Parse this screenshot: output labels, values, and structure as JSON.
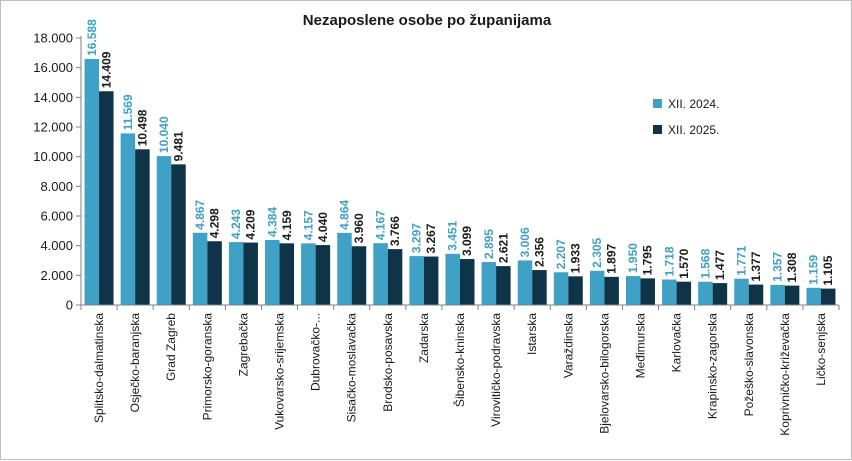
{
  "chart_data": {
    "type": "bar",
    "title": "Nezaposlene osobe po županijama",
    "xlabel": "",
    "ylabel": "",
    "ylim": [
      0,
      18000
    ],
    "yticks": [
      0,
      2000,
      4000,
      6000,
      8000,
      10000,
      12000,
      14000,
      16000,
      18000
    ],
    "ytick_labels": [
      "0",
      "2.000",
      "4.000",
      "6.000",
      "8.000",
      "10.000",
      "12.000",
      "14.000",
      "16.000",
      "18.000"
    ],
    "legend_position": "right",
    "grid": false,
    "categories": [
      "Splitsko-dalmatinska",
      "Osječko-baranjska",
      "Grad Zagreb",
      "Primorsko-goranska",
      "Zagrebačka",
      "Vukovarsko-srijemska",
      "Dubrovačko-...",
      "Sisačko-moslavačka",
      "Brodsko-posavska",
      "Zadarska",
      "Šibensko-kninska",
      "Virovitičko-podravska",
      "Istarska",
      "Varaždinska",
      "Bjelovarsko-bilogorska",
      "Međimurska",
      "Karlovačka",
      "Krapinsko-zagorska",
      "Požeško-slavonska",
      "Koprivničko-križevačka",
      "Ličko-senjska"
    ],
    "series": [
      {
        "name": "XII. 2024.",
        "color": "#3fa1c6",
        "values": [
          16588,
          11569,
          10040,
          4867,
          4243,
          4384,
          4157,
          4864,
          4167,
          3297,
          3451,
          2895,
          3006,
          2207,
          2305,
          1950,
          1718,
          1568,
          1771,
          1357,
          1159
        ],
        "labels": [
          "16.588",
          "11.569",
          "10.040",
          "4.867",
          "4.243",
          "4.384",
          "4.157",
          "4.864",
          "4.167",
          "3.297",
          "3.451",
          "2.895",
          "3.006",
          "2.207",
          "2.305",
          "1.950",
          "1.718",
          "1.568",
          "1.771",
          "1.357",
          "1.159"
        ]
      },
      {
        "name": "XII. 2025.",
        "color": "#0f3447",
        "values": [
          14409,
          10498,
          9481,
          4298,
          4209,
          4159,
          4040,
          3960,
          3766,
          3267,
          3099,
          2621,
          2356,
          1933,
          1897,
          1795,
          1570,
          1477,
          1377,
          1308,
          1105
        ],
        "labels": [
          "14.409",
          "10.498",
          "9.481",
          "4.298",
          "4.209",
          "4.159",
          "4.040",
          "3.960",
          "3.766",
          "3.267",
          "3.099",
          "2.621",
          "2.356",
          "1.933",
          "1.897",
          "1.795",
          "1.570",
          "1.477",
          "1.377",
          "1.308",
          "1.105"
        ]
      }
    ]
  }
}
